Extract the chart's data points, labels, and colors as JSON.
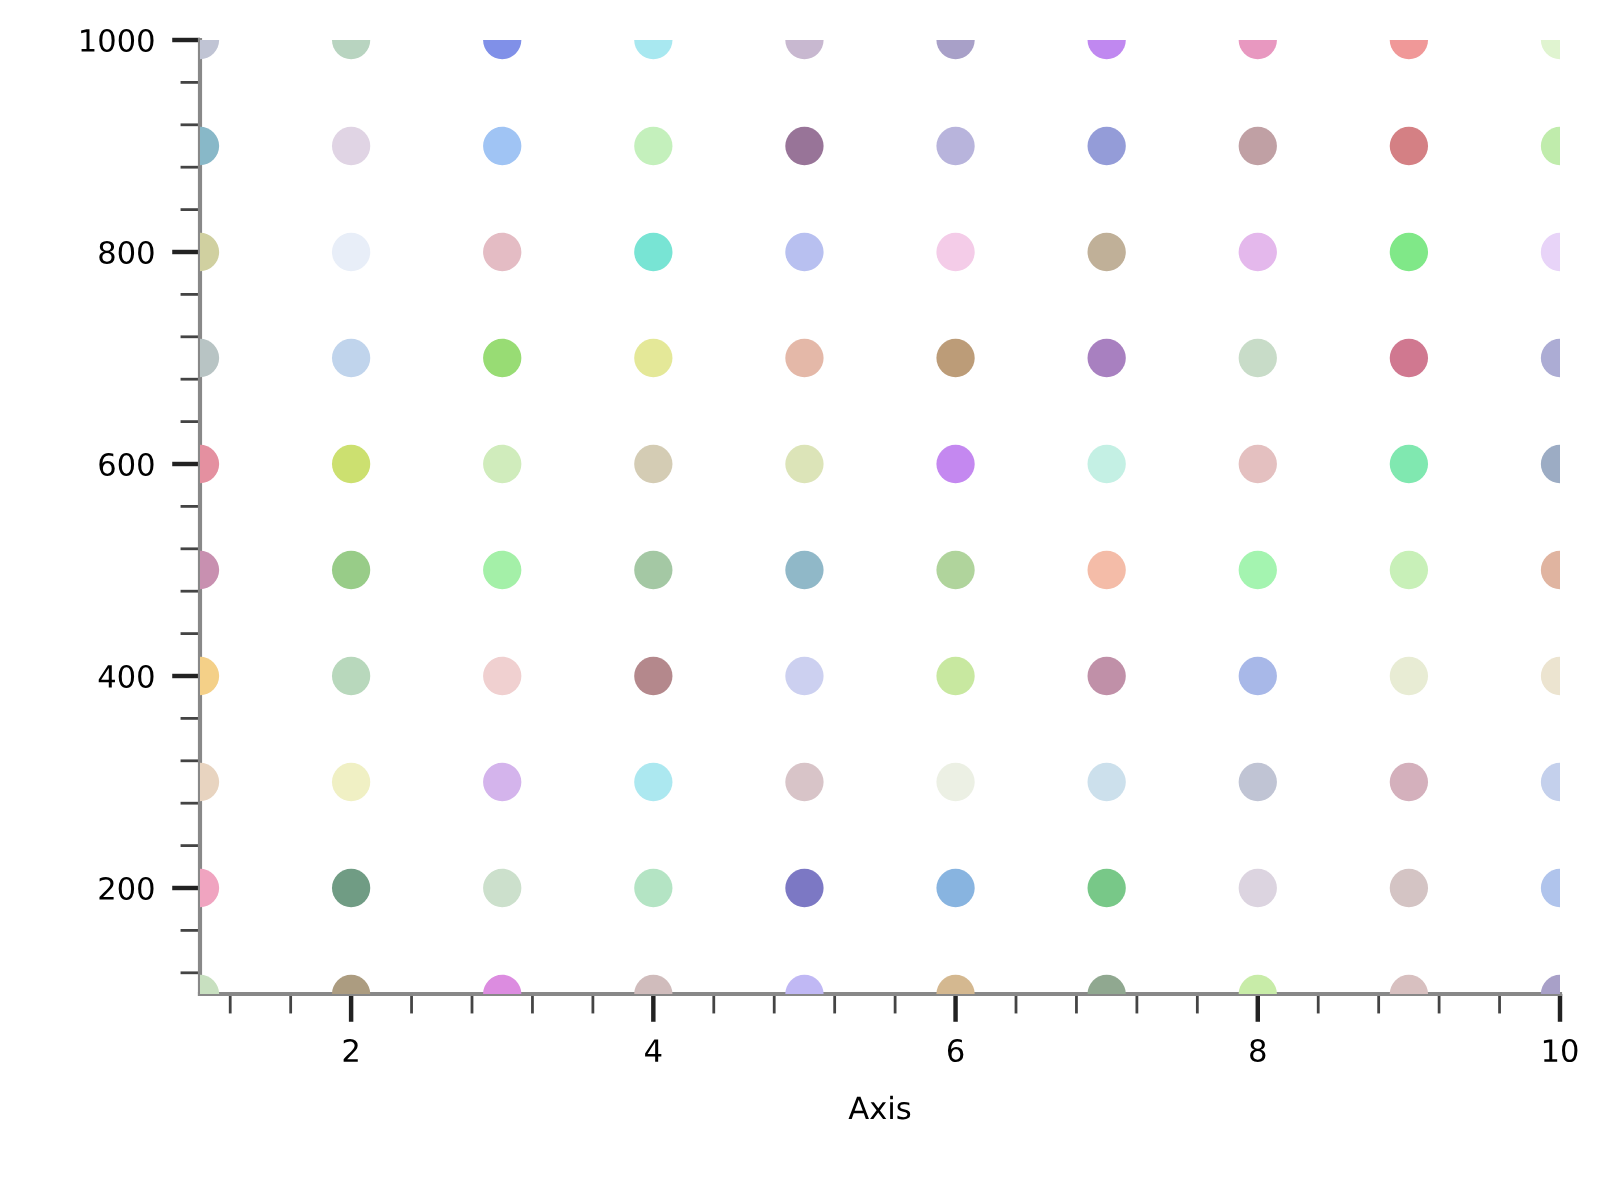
{
  "chart_data": {
    "type": "scatter",
    "xlabel": "Axis",
    "marker": "circle",
    "grid": false,
    "x": [
      1,
      2,
      3,
      4,
      5,
      6,
      7,
      8,
      9,
      10,
      1,
      2,
      3,
      4,
      5,
      6,
      7,
      8,
      9,
      10,
      1,
      2,
      3,
      4,
      5,
      6,
      7,
      8,
      9,
      10,
      1,
      2,
      3,
      4,
      5,
      6,
      7,
      8,
      9,
      10,
      1,
      2,
      3,
      4,
      5,
      6,
      7,
      8,
      9,
      10,
      1,
      2,
      3,
      4,
      5,
      6,
      7,
      8,
      9,
      10,
      1,
      2,
      3,
      4,
      5,
      6,
      7,
      8,
      9,
      10,
      1,
      2,
      3,
      4,
      5,
      6,
      7,
      8,
      9,
      10,
      1,
      2,
      3,
      4,
      5,
      6,
      7,
      8,
      9,
      10,
      1,
      2,
      3,
      4,
      5,
      6,
      7,
      8,
      9,
      10
    ],
    "values": [
      1000,
      1000,
      1000,
      1000,
      1000,
      1000,
      1000,
      1000,
      1000,
      1000,
      900,
      900,
      900,
      900,
      900,
      900,
      900,
      900,
      900,
      900,
      800,
      800,
      800,
      800,
      800,
      800,
      800,
      800,
      800,
      800,
      700,
      700,
      700,
      700,
      700,
      700,
      700,
      700,
      700,
      700,
      600,
      600,
      600,
      600,
      600,
      600,
      600,
      600,
      600,
      600,
      500,
      500,
      500,
      500,
      500,
      500,
      500,
      500,
      500,
      500,
      400,
      400,
      400,
      400,
      400,
      400,
      400,
      400,
      400,
      400,
      300,
      300,
      300,
      300,
      300,
      300,
      300,
      300,
      300,
      300,
      200,
      200,
      200,
      200,
      200,
      200,
      200,
      200,
      200,
      200,
      100,
      100,
      100,
      100,
      100,
      100,
      100,
      100,
      100,
      100
    ],
    "colors": [
      "#c0c4d4",
      "#b8d4c0",
      "#8090e8",
      "#a8e8f0",
      "#c8b8d0",
      "#a8a0c8",
      "#c088f0",
      "#e898c0",
      "#f09898",
      "#e0f4d0",
      "#88b8c8",
      "#e0d4e4",
      "#a0c4f4",
      "#c4f0bc",
      "#987498",
      "#b8b4dc",
      "#949cd8",
      "#c0a0a4",
      "#d48084",
      "#c0ecac",
      "#d0d0a0",
      "#e8eef8",
      "#e4bcc4",
      "#78e4d4",
      "#b8c0f0",
      "#f4cce8",
      "#c0b098",
      "#e4b8ec",
      "#80e888",
      "#e8d4f8",
      "#b8c4c4",
      "#c0d4ec",
      "#98dc74",
      "#e4e898",
      "#e4b8a8",
      "#bc9c78",
      "#a880c0",
      "#c8dcc8",
      "#d07890",
      "#acacd4",
      "#e490a0",
      "#cce070",
      "#d0ecbc",
      "#d4ccb4",
      "#dce4b8",
      "#c488f0",
      "#c4f0e4",
      "#e4c0c0",
      "#80e8b0",
      "#9cacc4",
      "#c890b0",
      "#98cc88",
      "#a4f0a8",
      "#a4c8a4",
      "#90b8c8",
      "#b0d49c",
      "#f4bca8",
      "#a4f4b0",
      "#c8f0b8",
      "#e0b4a0",
      "#f4d088",
      "#b8d8bc",
      "#f0d0d0",
      "#b4888c",
      "#ccd0f0",
      "#c8e8a0",
      "#c090a8",
      "#a8b8e8",
      "#e8ecd4",
      "#ece4d0",
      "#e8d4c0",
      "#f0f0c4",
      "#d4b4ec",
      "#ace8f0",
      "#d8c4c8",
      "#ecf0e4",
      "#cce0ec",
      "#c0c4d4",
      "#d4b0bc",
      "#c4d0ec",
      "#f0a4c0",
      "#709c84",
      "#cce0cc",
      "#b4e4c4",
      "#7c78c4",
      "#88b4e0",
      "#78c888",
      "#dcd4e0",
      "#d4c4c4",
      "#b0c4ec",
      "#c8e0c0",
      "#ac9c80",
      "#dc8ce0",
      "#d0bcbc",
      "#c0b8f4",
      "#d4b890",
      "#90a890",
      "#c8eca8",
      "#d8c0c0",
      "#a8a0c8"
    ],
    "xlim": [
      1,
      10
    ],
    "xticks": [
      {
        "value": 1.2,
        "label": null
      },
      {
        "value": 1.6,
        "label": null
      },
      2,
      {
        "value": 2.4,
        "label": null
      },
      {
        "value": 2.8,
        "label": null
      },
      {
        "value": 3.2,
        "label": null
      },
      {
        "value": 3.6,
        "label": null
      },
      4,
      {
        "value": 4.4,
        "label": null
      },
      {
        "value": 4.8,
        "label": null
      },
      {
        "value": 5.2,
        "label": null
      },
      {
        "value": 5.6,
        "label": null
      },
      6,
      {
        "value": 6.4,
        "label": null
      },
      {
        "value": 6.8,
        "label": null
      },
      {
        "value": 7.2,
        "label": null
      },
      {
        "value": 7.6,
        "label": null
      },
      8,
      {
        "value": 8.4,
        "label": null
      },
      {
        "value": 8.8,
        "label": null
      },
      {
        "value": 9.2,
        "label": null
      },
      {
        "value": 9.6,
        "label": null
      },
      10
    ],
    "ylim": [
      100,
      1000
    ],
    "yticks": [
      {
        "value": 120,
        "label": null
      },
      {
        "value": 160,
        "label": null
      },
      200,
      {
        "value": 240,
        "label": null
      },
      {
        "value": 280,
        "label": null
      },
      {
        "value": 320,
        "label": null
      },
      {
        "value": 360,
        "label": null
      },
      400,
      {
        "value": 440,
        "label": null
      },
      {
        "value": 480,
        "label": null
      },
      {
        "value": 520,
        "label": null
      },
      {
        "value": 560,
        "label": null
      },
      600,
      {
        "value": 640,
        "label": null
      },
      {
        "value": 680,
        "label": null
      },
      {
        "value": 720,
        "label": null
      },
      {
        "value": 760,
        "label": null
      },
      800,
      {
        "value": 840,
        "label": null
      },
      {
        "value": 880,
        "label": null
      },
      {
        "value": 920,
        "label": null
      },
      {
        "value": 960,
        "label": null
      },
      1000
    ]
  }
}
